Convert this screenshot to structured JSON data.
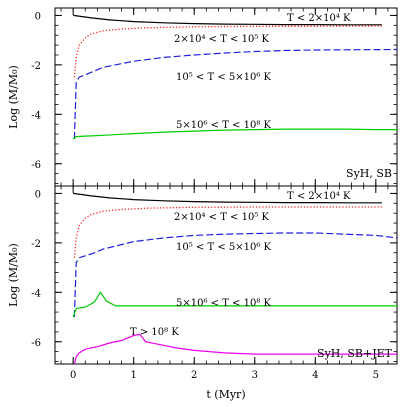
{
  "chart_data": [
    {
      "type": "line",
      "panel_label": "SyH, SB",
      "xlim": [
        -0.3,
        5.35
      ],
      "ylim": [
        -6.9,
        0.3
      ],
      "x_ticks": [
        0,
        1,
        2,
        3,
        4,
        5
      ],
      "y_ticks": [
        0,
        -2,
        -4,
        -6
      ],
      "y_tick_labels": [
        "0",
        "-2",
        "-4",
        "-6"
      ],
      "ylabel": "Log (M/M₀)",
      "grid": false,
      "series": [
        {
          "name": "T < 2×10⁴ K",
          "color": "#000000",
          "dash": "solid",
          "x": [
            0,
            0.3,
            0.6,
            1,
            1.5,
            2,
            2.5,
            3,
            3.5,
            4,
            4.5,
            5.1
          ],
          "y": [
            0,
            -0.1,
            -0.18,
            -0.25,
            -0.3,
            -0.33,
            -0.35,
            -0.36,
            -0.37,
            -0.37,
            -0.38,
            -0.38
          ]
        },
        {
          "name": "2×10⁴ < T < 10⁵ K",
          "color": "#ff2020",
          "dash": "dot",
          "x": [
            0.02,
            0.05,
            0.1,
            0.2,
            0.3,
            0.5,
            0.8,
            1.2,
            2,
            3,
            4,
            5.1
          ],
          "y": [
            -2.5,
            -1.7,
            -1.2,
            -0.9,
            -0.75,
            -0.62,
            -0.55,
            -0.5,
            -0.46,
            -0.44,
            -0.44,
            -0.43
          ]
        },
        {
          "name": "10⁵ < T < 5×10⁶ K",
          "color": "#2020dd",
          "dash": "dash",
          "x": [
            0.02,
            0.05,
            0.1,
            0.3,
            0.5,
            1,
            1.5,
            2,
            2.5,
            3,
            3.5,
            4,
            4.5,
            5.35
          ],
          "y": [
            -5,
            -2.7,
            -2.5,
            -2.3,
            -2.1,
            -1.85,
            -1.7,
            -1.6,
            -1.52,
            -1.46,
            -1.42,
            -1.4,
            -1.39,
            -1.38
          ]
        },
        {
          "name": "5×10⁶ < T < 10⁸ K",
          "color": "#00cc00",
          "dash": "solid",
          "x": [
            0,
            0.05,
            0.2,
            0.5,
            1,
            1.5,
            2,
            2.5,
            3,
            3.5,
            4,
            4.5,
            5,
            5.35
          ],
          "y": [
            -5,
            -4.9,
            -4.88,
            -4.85,
            -4.78,
            -4.72,
            -4.68,
            -4.64,
            -4.62,
            -4.6,
            -4.6,
            -4.6,
            -4.62,
            -4.62
          ]
        }
      ]
    },
    {
      "type": "line",
      "panel_label": "SyH, SB+JET",
      "xlim": [
        -0.3,
        5.35
      ],
      "ylim": [
        -6.9,
        0.3
      ],
      "x_ticks": [
        0,
        1,
        2,
        3,
        4,
        5
      ],
      "x_tick_labels": [
        "0",
        "1",
        "2",
        "3",
        "4",
        "5"
      ],
      "y_ticks": [
        0,
        -2,
        -4,
        -6
      ],
      "y_tick_labels": [
        "0",
        "-2",
        "-4",
        "-6"
      ],
      "xlabel": "t (Myr)",
      "ylabel": "Log (M/M₀)",
      "grid": false,
      "series": [
        {
          "name": "T < 2×10⁴ K",
          "color": "#000000",
          "dash": "solid",
          "x": [
            0,
            0.3,
            0.6,
            1,
            1.5,
            2,
            2.5,
            3,
            3.5,
            4,
            4.5,
            5.1
          ],
          "y": [
            0,
            -0.1,
            -0.18,
            -0.25,
            -0.3,
            -0.33,
            -0.35,
            -0.36,
            -0.37,
            -0.37,
            -0.38,
            -0.38
          ]
        },
        {
          "name": "2×10⁴ < T < 10⁵ K",
          "color": "#ff2020",
          "dash": "dot",
          "x": [
            0.02,
            0.05,
            0.1,
            0.2,
            0.3,
            0.5,
            0.8,
            1.2,
            2,
            3,
            4,
            5.1
          ],
          "y": [
            -2.6,
            -1.8,
            -1.3,
            -1.0,
            -0.85,
            -0.72,
            -0.65,
            -0.6,
            -0.56,
            -0.55,
            -0.55,
            -0.55
          ]
        },
        {
          "name": "10⁵ < T < 5×10⁶ K",
          "color": "#2020dd",
          "dash": "dash",
          "x": [
            0.02,
            0.05,
            0.1,
            0.3,
            0.5,
            1,
            1.5,
            2,
            2.5,
            3,
            3.5,
            4,
            4.5,
            5,
            5.35
          ],
          "y": [
            -5,
            -2.8,
            -2.6,
            -2.45,
            -2.25,
            -1.95,
            -1.8,
            -1.7,
            -1.65,
            -1.62,
            -1.6,
            -1.6,
            -1.65,
            -1.7,
            -1.8
          ]
        },
        {
          "name": "5×10⁶ < T < 10⁸ K",
          "color": "#00cc00",
          "dash": "solid",
          "x": [
            0,
            0.05,
            0.2,
            0.35,
            0.45,
            0.55,
            0.7,
            1,
            1.5,
            2,
            2.5,
            3,
            3.5,
            4,
            4.5,
            5,
            5.35
          ],
          "y": [
            -5,
            -4.65,
            -4.6,
            -4.4,
            -4.0,
            -4.35,
            -4.55,
            -4.55,
            -4.55,
            -4.55,
            -4.55,
            -4.55,
            -4.55,
            -4.55,
            -4.55,
            -4.55,
            -4.55
          ]
        },
        {
          "name": "T > 10⁸ K",
          "color": "#ee00ee",
          "dash": "solid",
          "x": [
            0.02,
            0.05,
            0.1,
            0.2,
            0.4,
            0.6,
            0.8,
            1,
            1.1,
            1.2,
            1.4,
            1.7,
            2,
            2.5,
            3,
            3.5,
            4,
            4.5,
            5,
            5.35
          ],
          "y": [
            -7.2,
            -6.6,
            -6.45,
            -6.3,
            -6.2,
            -6.05,
            -5.95,
            -5.75,
            -5.7,
            -6.0,
            -6.1,
            -6.25,
            -6.35,
            -6.45,
            -6.5,
            -6.5,
            -6.5,
            -6.5,
            -6.5,
            -6.5
          ]
        }
      ]
    }
  ]
}
